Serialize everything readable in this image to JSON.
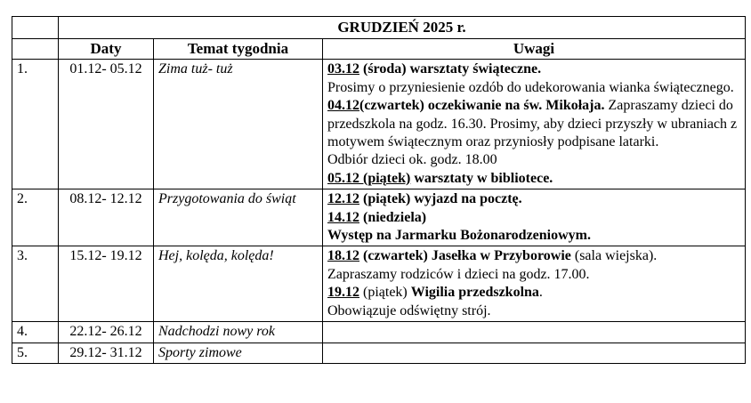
{
  "colors": {
    "background": "#ffffff",
    "text": "#000000",
    "border": "#000000"
  },
  "table": {
    "month_header": "GRUDZIEŃ 2025 r.",
    "columns": {
      "daty": "Daty",
      "temat": "Temat tygodnia",
      "uwagi": "Uwagi"
    },
    "rows": [
      {
        "num": "1.",
        "daty": "01.12- 05.12",
        "temat": "Zima tuż- tuż",
        "uwagi": [
          [
            {
              "t": "03.12",
              "b": true,
              "u": true
            },
            {
              "t": " (środa) warsztaty świąteczne.",
              "b": true
            }
          ],
          [
            {
              "t": "Prosimy o przyniesienie ozdób do udekorowania wianka świątecznego."
            }
          ],
          [
            {
              "t": "04.12",
              "b": true,
              "u": true
            },
            {
              "t": "(czwartek) oczekiwanie na św. Mikołaja.",
              "b": true
            },
            {
              "t": " Zapraszamy dzieci do przedszkola na godz. 16.30. Prosimy, aby dzieci przyszły w ubraniach z motywem świątecznym oraz przyniosły podpisane latarki."
            }
          ],
          [
            {
              "t": "Odbiór dzieci ok. godz. 18.00"
            }
          ],
          [
            {
              "t": "05.12 (piątek)",
              "b": true,
              "u": true
            },
            {
              "t": " warsztaty w bibliotece.",
              "b": true
            }
          ]
        ]
      },
      {
        "num": "2.",
        "daty": "08.12- 12.12",
        "temat": "Przygotowania do świąt",
        "uwagi": [
          [
            {
              "t": "12.12",
              "b": true,
              "u": true
            },
            {
              "t": " (piątek) wyjazd na pocztę.",
              "b": true
            }
          ],
          [
            {
              "t": "14.12",
              "b": true,
              "u": true
            },
            {
              "t": " (niedziela)",
              "b": true
            }
          ],
          [
            {
              "t": "Występ na Jarmarku Bożonarodzeniowym.",
              "b": true
            }
          ]
        ]
      },
      {
        "num": "3.",
        "daty": "15.12- 19.12",
        "temat": "Hej, kolęda, kolęda!",
        "uwagi": [
          [
            {
              "t": "18.12",
              "b": true,
              "u": true
            },
            {
              "t": " (czwartek) Jasełka w Przyborowie",
              "b": true
            },
            {
              "t": " (sala wiejska)."
            }
          ],
          [
            {
              "t": "Zapraszamy rodziców i dzieci na godz. 17.00."
            }
          ],
          [
            {
              "t": "19.12",
              "b": true,
              "u": true
            },
            {
              "t": " (piątek) "
            },
            {
              "t": "Wigilia przedszkolna",
              "b": true
            },
            {
              "t": "."
            }
          ],
          [
            {
              "t": "Obowiązuje odświętny strój."
            }
          ]
        ]
      },
      {
        "num": "4.",
        "daty": "22.12- 26.12",
        "temat": "Nadchodzi nowy rok",
        "uwagi": []
      },
      {
        "num": "5.",
        "daty": "29.12- 31.12",
        "temat": "Sporty zimowe",
        "uwagi": []
      }
    ]
  }
}
